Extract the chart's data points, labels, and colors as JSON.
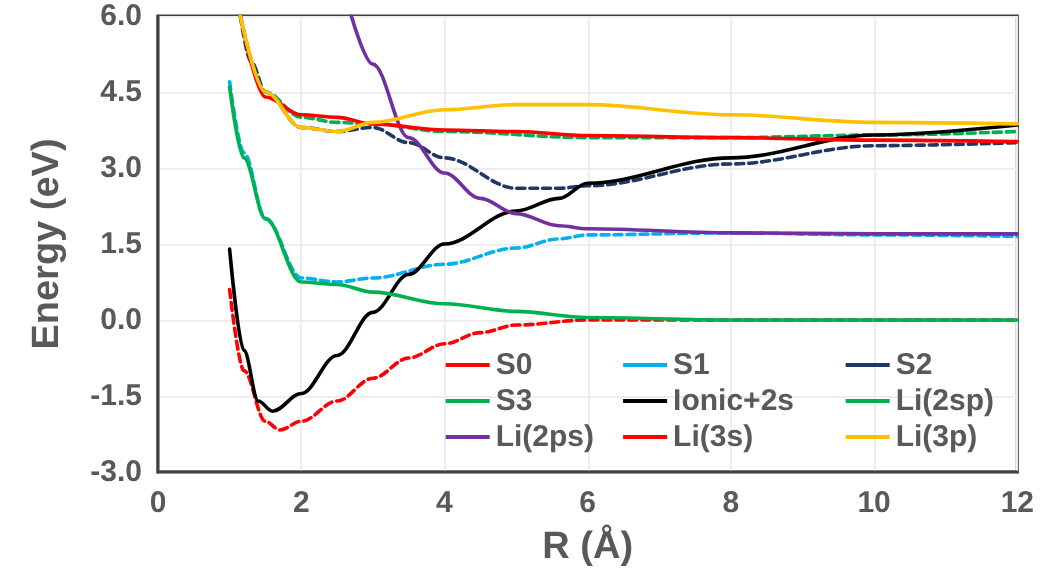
{
  "chart_data": {
    "type": "line",
    "xlabel": "R (Å)",
    "ylabel": "Energy (eV)",
    "xlim": [
      0,
      12
    ],
    "xticks": [
      0,
      2,
      4,
      6,
      8,
      10,
      12
    ],
    "ylim": [
      -3,
      6
    ],
    "yticks": [
      {
        "value": -3,
        "label": "-3.0"
      },
      {
        "value": -1.5,
        "label": "-1.5"
      },
      {
        "value": 0,
        "label": "0.0"
      },
      {
        "value": 1.5,
        "label": "1.5"
      },
      {
        "value": 3,
        "label": "3.0"
      },
      {
        "value": 4.5,
        "label": "4.5"
      },
      {
        "value": 6,
        "label": "6.0"
      }
    ],
    "grid": true,
    "legend": "bottom right",
    "marker": "none",
    "series": [
      {
        "name": "S0",
        "color": "#ff0000",
        "line_style": "dashed",
        "x": [
          1,
          1.2,
          1.5,
          1.7,
          2,
          2.5,
          3,
          3.5,
          4,
          4.5,
          5,
          6,
          8,
          10,
          12
        ],
        "values": [
          0.6,
          -1.0,
          -2.0,
          -2.17,
          -2.0,
          -1.6,
          -1.15,
          -0.75,
          -0.47,
          -0.25,
          -0.1,
          0,
          0,
          0,
          0
        ]
      },
      {
        "name": "S1",
        "color": "#00b0f0",
        "line_style": "dashed",
        "x": [
          1,
          1.2,
          1.5,
          2,
          2.5,
          3,
          4,
          5,
          5.6,
          6,
          8,
          10,
          12
        ],
        "values": [
          4.7,
          3.3,
          2.0,
          0.83,
          0.75,
          0.83,
          1.1,
          1.42,
          1.6,
          1.68,
          1.72,
          1.68,
          1.65
        ]
      },
      {
        "name": "S2",
        "color": "#1f3864",
        "line_style": "dashed",
        "x": [
          1.15,
          1.3,
          1.5,
          2,
          2.5,
          3,
          3.5,
          4,
          5,
          5.6,
          6,
          8,
          10,
          12
        ],
        "values": [
          6,
          5.1,
          4.5,
          3.8,
          3.72,
          3.8,
          3.5,
          3.2,
          2.6,
          2.6,
          2.65,
          3.08,
          3.44,
          3.5
        ]
      },
      {
        "name": "S3",
        "color": "#00b050",
        "line_style": "dashed",
        "x": [
          1.15,
          1.5,
          2,
          2.5,
          3,
          4,
          6,
          8,
          10,
          12
        ],
        "values": [
          6,
          4.5,
          4.0,
          3.9,
          3.87,
          3.72,
          3.6,
          3.6,
          3.65,
          3.72
        ]
      },
      {
        "name": "Ionic+2s",
        "color": "#000000",
        "line_style": "solid",
        "x": [
          1,
          1.2,
          1.4,
          1.6,
          2,
          2.5,
          3,
          3.5,
          4,
          5,
          5.6,
          6,
          8,
          10,
          12
        ],
        "values": [
          1.4,
          -0.6,
          -1.6,
          -1.8,
          -1.45,
          -0.7,
          0.15,
          0.9,
          1.5,
          2.15,
          2.4,
          2.7,
          3.2,
          3.65,
          3.85
        ]
      },
      {
        "name": "Li(2sp)",
        "color": "#00b050",
        "line_style": "solid",
        "x": [
          1,
          1.2,
          1.5,
          2,
          2.5,
          3,
          4,
          5,
          6,
          8,
          10,
          12
        ],
        "values": [
          4.6,
          3.2,
          2.0,
          0.75,
          0.7,
          0.55,
          0.32,
          0.17,
          0.05,
          0,
          0,
          0
        ]
      },
      {
        "name": "Li(2ps)",
        "color": "#7030a0",
        "line_style": "solid",
        "x": [
          2.7,
          3,
          3.5,
          4,
          4.5,
          5,
          5.6,
          6,
          8,
          10,
          12
        ],
        "values": [
          6,
          5.05,
          3.6,
          2.9,
          2.4,
          2.1,
          1.86,
          1.8,
          1.72,
          1.7,
          1.7
        ]
      },
      {
        "name": "Li(3s)",
        "color": "#ff0000",
        "line_style": "solid",
        "x": [
          1.15,
          1.5,
          2,
          2.5,
          3,
          4,
          5,
          6,
          8,
          10,
          12
        ],
        "values": [
          6,
          4.4,
          4.05,
          4.0,
          3.87,
          3.75,
          3.72,
          3.64,
          3.6,
          3.55,
          3.52
        ]
      },
      {
        "name": "Li(3p)",
        "color": "#ffc000",
        "line_style": "solid",
        "x": [
          1.15,
          1.5,
          2,
          2.5,
          3,
          4,
          5,
          6,
          8,
          10,
          12
        ],
        "values": [
          6,
          4.5,
          3.8,
          3.72,
          3.9,
          4.15,
          4.25,
          4.25,
          4.05,
          3.9,
          3.87
        ]
      }
    ]
  }
}
